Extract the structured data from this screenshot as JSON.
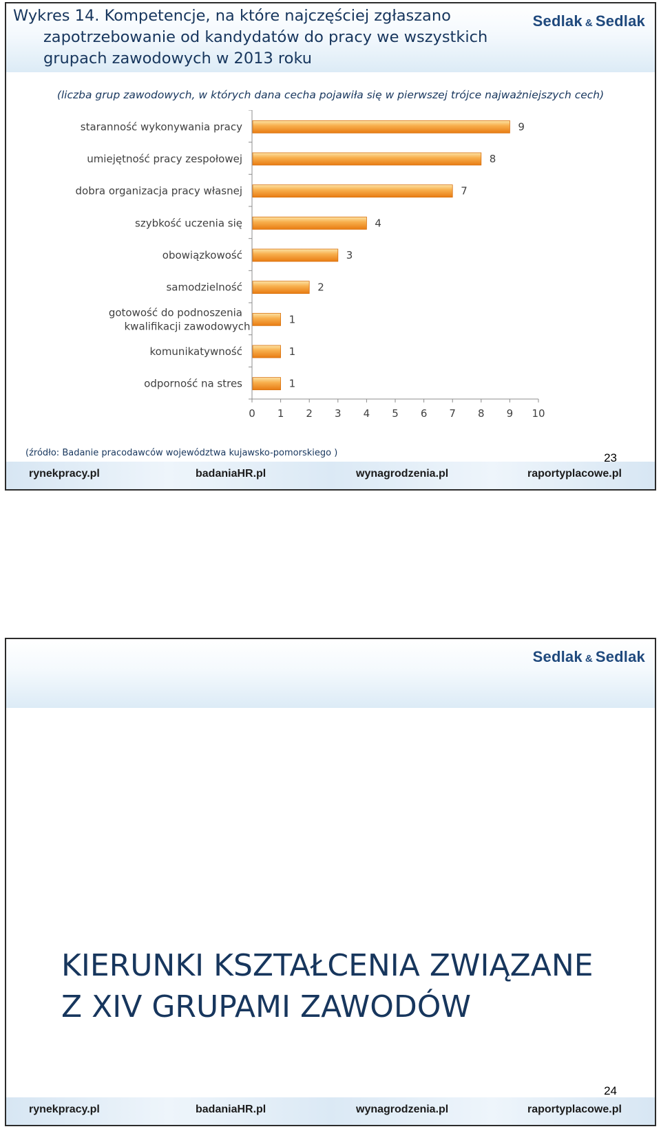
{
  "slide1": {
    "title_lines": [
      "Wykres 14. Kompetencje, na które najczęściej zgłaszano",
      "zapotrzebowanie od kandydatów do pracy we wszystkich",
      "grupach zawodowych w 2013 roku"
    ],
    "brand": {
      "left": "Sedlak",
      "amp": "&",
      "right": "Sedlak"
    },
    "subtitle": "(liczba grup zawodowych, w których dana cecha pojawiła się w pierwszej trójce najważniejszych cech)",
    "source": "(źródło: Badanie pracodawców województwa kujawsko-pomorskiego )",
    "page_number": "23",
    "footer": {
      "link1": "rynekpracy.pl",
      "link2_a": "badania",
      "link2_b": "HR",
      "link2_c": ".pl",
      "link3": "wynagrodzenia.pl",
      "link4": "raportyplacowe.pl"
    }
  },
  "slide2": {
    "brand": {
      "left": "Sedlak",
      "amp": "&",
      "right": "Sedlak"
    },
    "section_title_lines": [
      "KIERUNKI KSZTAŁCENIA ZWIĄZANE",
      "Z XIV GRUPAMI ZAWODÓW"
    ],
    "page_number": "24",
    "footer": {
      "link1": "rynekpracy.pl",
      "link2_a": "badania",
      "link2_b": "HR",
      "link2_c": ".pl",
      "link3": "wynagrodzenia.pl",
      "link4": "raportyplacowe.pl"
    }
  },
  "colors": {
    "bar_light": "#fce3a6",
    "bar_mid": "#f8b04e",
    "bar_dark": "#e87c13",
    "title": "#17365d",
    "hr_accent": "#d11f26"
  },
  "chart_data": {
    "type": "bar",
    "orientation": "horizontal",
    "categories": [
      "staranność wykonywania pracy",
      "umiejętność pracy zespołowej",
      "dobra organizacja pracy własnej",
      "szybkość uczenia się",
      "obowiązkowość",
      "samodzielność",
      "gotowość do podnoszenia kwalifikacji zawodowych",
      "komunikatywność",
      "odporność na stres"
    ],
    "values": [
      9,
      8,
      7,
      4,
      3,
      2,
      1,
      1,
      1
    ],
    "data_labels": [
      "9",
      "8",
      "7",
      "4",
      "3",
      "2",
      "1",
      "1",
      "1"
    ],
    "x_ticks": [
      "0",
      "1",
      "2",
      "3",
      "4",
      "5",
      "6",
      "7",
      "8",
      "9",
      "10"
    ],
    "xlim": [
      0,
      10
    ],
    "grid": false,
    "legend": "none"
  }
}
